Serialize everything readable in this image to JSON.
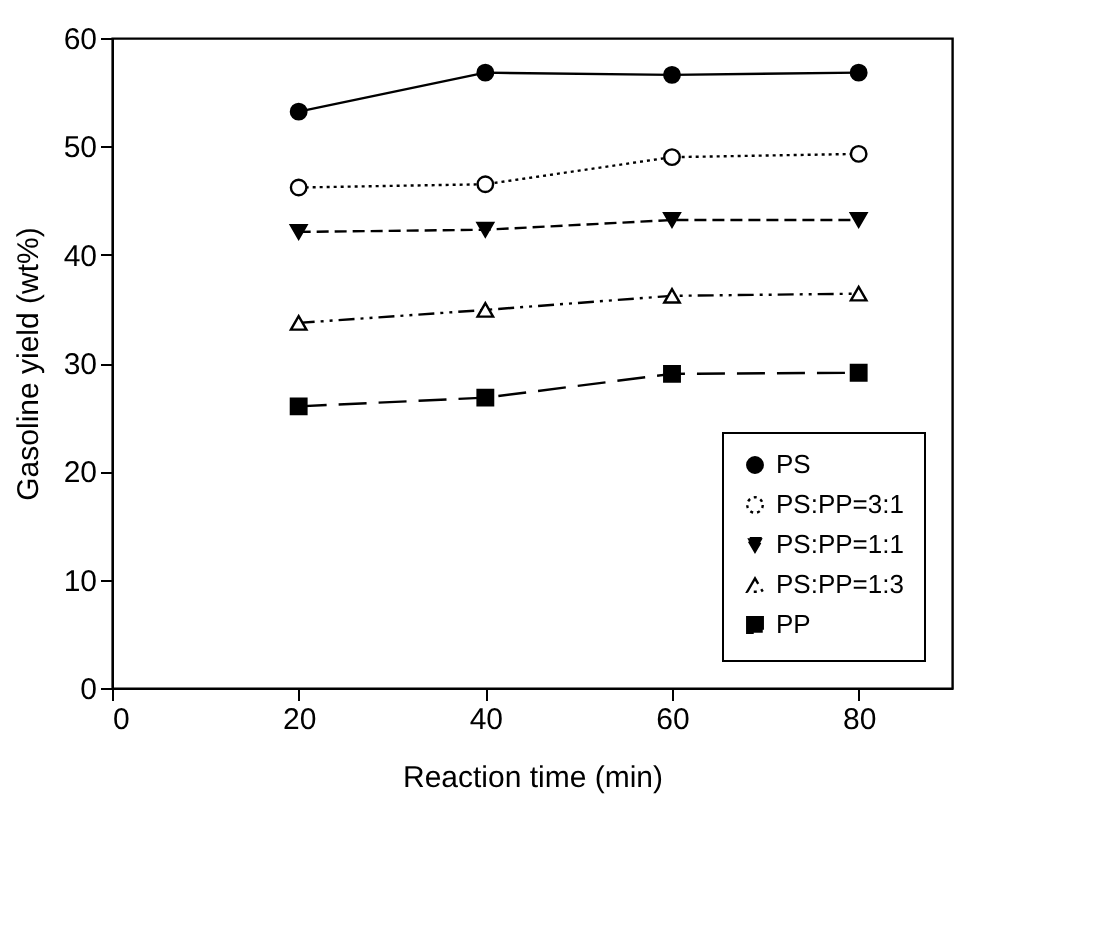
{
  "chart_data": {
    "type": "line",
    "xlabel": "Reaction time (min)",
    "ylabel": "Gasoline yield (wt%)",
    "x": [
      20,
      40,
      60,
      80
    ],
    "xlim": [
      0,
      90
    ],
    "xticks": [
      0,
      20,
      40,
      60,
      80
    ],
    "ylim": [
      0,
      60
    ],
    "yticks": [
      0,
      10,
      20,
      30,
      40,
      50,
      60
    ],
    "grid": false,
    "legend": "bottom right",
    "series": [
      {
        "name": "PS",
        "color": "#000000",
        "values": [
          53.2,
          56.8,
          56.6,
          56.8
        ],
        "marker": "circle",
        "line_style": "solid"
      },
      {
        "name": "PS:PP=3:1",
        "color": "#000000",
        "values": [
          46.2,
          46.5,
          49.0,
          49.3
        ],
        "marker": "circle-open",
        "line_style": "dotted"
      },
      {
        "name": "PS:PP=1:1",
        "color": "#000000",
        "values": [
          42.1,
          42.3,
          43.2,
          43.2
        ],
        "marker": "triangle-down",
        "line_style": "dashed"
      },
      {
        "name": "PS:PP=1:3",
        "color": "#000000",
        "values": [
          33.7,
          34.9,
          36.2,
          36.4
        ],
        "marker": "triangle-open",
        "line_style": "dashdotdot"
      },
      {
        "name": "PP",
        "color": "#000000",
        "values": [
          26.0,
          26.8,
          29.0,
          29.1
        ],
        "marker": "square",
        "line_style": "longdash"
      }
    ]
  }
}
